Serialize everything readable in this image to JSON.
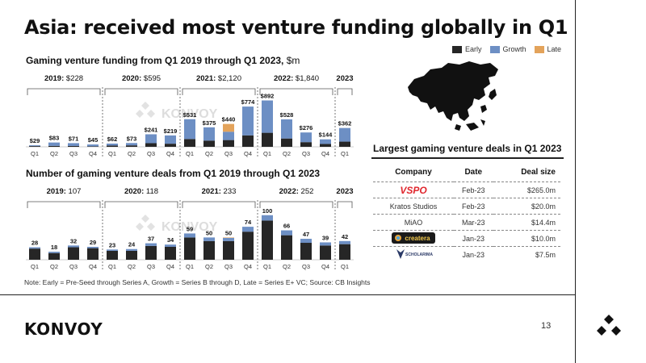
{
  "slide": {
    "title": "Asia: received most venture funding globally in Q1",
    "note": "Note: Early = Pre-Seed through Series A, Growth = Series B through D, Late = Series E+ VC; Source: CB Insights",
    "brand": "KONVOY",
    "watermark": "KONVOY",
    "page_number": "13"
  },
  "legend": [
    {
      "label": "Early",
      "color": "#262626"
    },
    {
      "label": "Growth",
      "color": "#6d8fc4"
    },
    {
      "label": "Late",
      "color": "#e3a35b"
    }
  ],
  "colors": {
    "early": "#262626",
    "growth": "#6d8fc4",
    "late": "#e3a35b",
    "accent_red": "#e0262d"
  },
  "chart_data": [
    {
      "type": "bar",
      "title": "Gaming venture funding from Q1 2019 through Q1 2023,",
      "unit": "$m",
      "categories": [
        "Q1",
        "Q2",
        "Q3",
        "Q4",
        "Q1",
        "Q2",
        "Q3",
        "Q4",
        "Q1",
        "Q2",
        "Q3",
        "Q4",
        "Q1",
        "Q2",
        "Q3",
        "Q4",
        "Q1"
      ],
      "groups": [
        {
          "year": "2019:",
          "total": "$228"
        },
        {
          "year": "2020:",
          "total": "$595"
        },
        {
          "year": "2021:",
          "total": "$2,120"
        },
        {
          "year": "2022:",
          "total": "$1,840"
        },
        {
          "year": "2023",
          "total": ""
        }
      ],
      "totals": [
        29,
        83,
        71,
        45,
        62,
        73,
        241,
        219,
        531,
        375,
        440,
        774,
        892,
        528,
        276,
        144,
        362
      ],
      "labels": [
        "$29",
        "$83",
        "$71",
        "$45",
        "$62",
        "$73",
        "$241",
        "$219",
        "$531",
        "$375",
        "$440",
        "$774",
        "$892",
        "$528",
        "$276",
        "$144",
        "$362"
      ],
      "series": [
        {
          "name": "Early",
          "values": [
            14,
            18,
            16,
            10,
            25,
            28,
            70,
            60,
            150,
            120,
            130,
            220,
            270,
            160,
            90,
            55,
            100
          ]
        },
        {
          "name": "Growth",
          "values": [
            15,
            65,
            55,
            35,
            37,
            45,
            171,
            159,
            381,
            255,
            160,
            554,
            622,
            368,
            186,
            89,
            262
          ]
        },
        {
          "name": "Late",
          "values": [
            0,
            0,
            0,
            0,
            0,
            0,
            0,
            0,
            0,
            0,
            150,
            0,
            0,
            0,
            0,
            0,
            0
          ]
        }
      ],
      "ylim": [
        0,
        900
      ]
    },
    {
      "type": "bar",
      "title": "Number of gaming venture deals from Q1 2019 through Q1 2023",
      "categories": [
        "Q1",
        "Q2",
        "Q3",
        "Q4",
        "Q1",
        "Q2",
        "Q3",
        "Q4",
        "Q1",
        "Q2",
        "Q3",
        "Q4",
        "Q1",
        "Q2",
        "Q3",
        "Q4",
        "Q1"
      ],
      "groups": [
        {
          "year": "2019:",
          "total": "107"
        },
        {
          "year": "2020:",
          "total": "118"
        },
        {
          "year": "2021:",
          "total": "233"
        },
        {
          "year": "2022:",
          "total": "252"
        },
        {
          "year": "2023",
          "total": ""
        }
      ],
      "totals": [
        28,
        18,
        32,
        29,
        23,
        24,
        37,
        34,
        59,
        50,
        50,
        74,
        100,
        66,
        47,
        39,
        42
      ],
      "labels": [
        "28",
        "18",
        "32",
        "29",
        "23",
        "24",
        "37",
        "34",
        "59",
        "50",
        "50",
        "74",
        "100",
        "66",
        "47",
        "39",
        "42"
      ],
      "series": [
        {
          "name": "Early",
          "values": [
            25,
            15,
            28,
            26,
            20,
            20,
            31,
            29,
            50,
            42,
            42,
            63,
            88,
            55,
            38,
            32,
            35
          ]
        },
        {
          "name": "Growth",
          "values": [
            3,
            3,
            4,
            3,
            3,
            4,
            6,
            5,
            9,
            8,
            7,
            11,
            12,
            11,
            9,
            7,
            7
          ]
        },
        {
          "name": "Late",
          "values": [
            0,
            0,
            0,
            0,
            0,
            0,
            0,
            0,
            0,
            0,
            1,
            0,
            0,
            0,
            0,
            0,
            0
          ]
        }
      ],
      "ylim": [
        0,
        105
      ]
    }
  ],
  "deals": {
    "title": "Largest gaming venture deals in Q1 2023",
    "headers": {
      "company": "Company",
      "date": "Date",
      "size": "Deal size"
    },
    "rows": [
      {
        "company": "VSPO",
        "date": "Feb-23",
        "size": "$265.0m",
        "logo": "vspo-logo"
      },
      {
        "company": "Kratos Studios",
        "date": "Feb-23",
        "size": "$20.0m",
        "logo": ""
      },
      {
        "company": "MiAO",
        "date": "Mar-23",
        "size": "$14.4m",
        "logo": ""
      },
      {
        "company": "createra",
        "date": "Jan-23",
        "size": "$10.0m",
        "logo": "createra-logo"
      },
      {
        "company": "SCHOLARIMA",
        "date": "Jan-23",
        "size": "$7.5m",
        "logo": "scholarima-logo"
      }
    ]
  }
}
